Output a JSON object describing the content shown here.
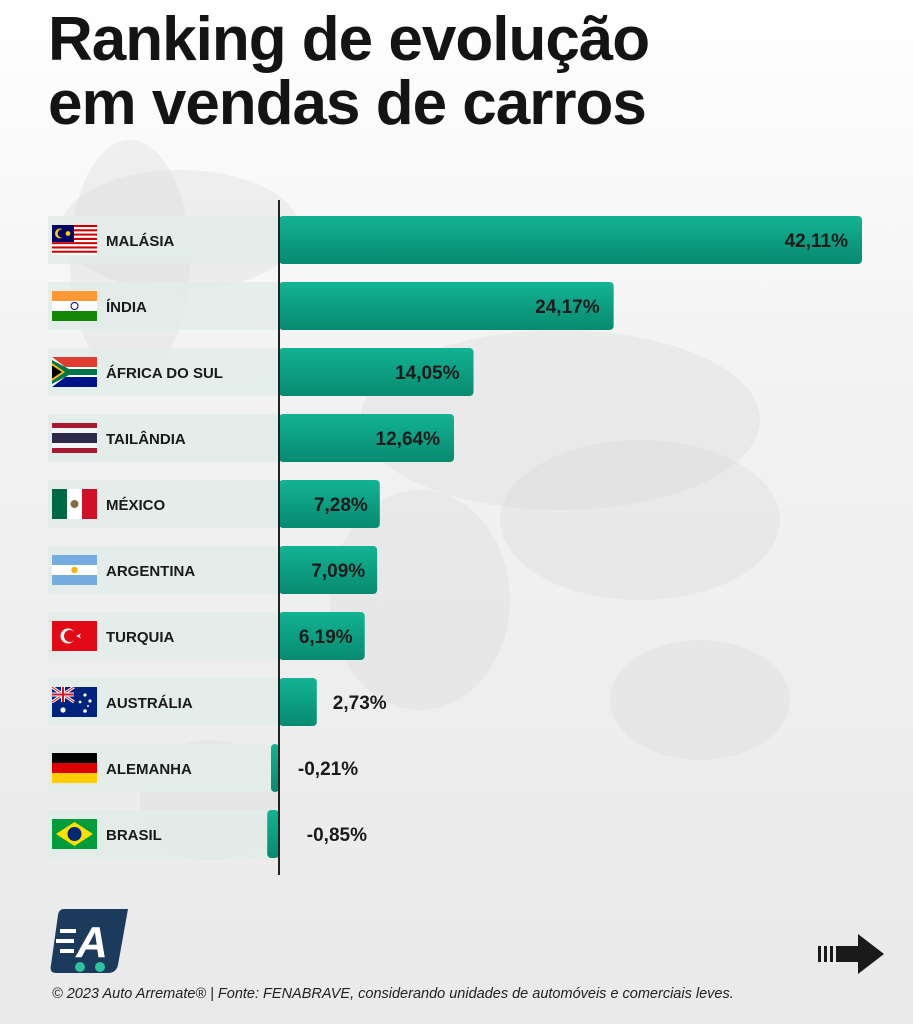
{
  "title": {
    "line1": "Ranking de evolução",
    "line2": "em vendas de carros"
  },
  "chart_data": {
    "type": "bar",
    "orientation": "horizontal",
    "categories": [
      "MALÁSIA",
      "ÍNDIA",
      "ÁFRICA DO SUL",
      "TAILÂNDIA",
      "MÉXICO",
      "ARGENTINA",
      "TURQUIA",
      "AUSTRÁLIA",
      "ALEMANHA",
      "BRASIL"
    ],
    "values": [
      42.11,
      24.17,
      14.05,
      12.64,
      7.28,
      7.09,
      6.19,
      2.73,
      -0.21,
      -0.85
    ],
    "value_labels": [
      "42,11%",
      "24,17%",
      "14,05%",
      "12,64%",
      "7,28%",
      "7,09%",
      "6,19%",
      "2,73%",
      "-0,21%",
      "-0,85%"
    ],
    "bar_color": "#0a9e82",
    "xlim": [
      -1,
      42.11
    ]
  },
  "flags": [
    "malaysia-flag-icon",
    "india-flag-icon",
    "south-africa-flag-icon",
    "thailand-flag-icon",
    "mexico-flag-icon",
    "argentina-flag-icon",
    "turkey-flag-icon",
    "australia-flag-icon",
    "germany-flag-icon",
    "brazil-flag-icon"
  ],
  "footer": {
    "text": "© 2023 Auto Arremate®  | Fonte: FENABRAVE, considerando unidades de automóveis e comerciais leves."
  },
  "logo": {
    "letter": "A",
    "color": "#1b3a5c"
  },
  "next_arrow": {
    "icon": "arrow-right-icon"
  }
}
